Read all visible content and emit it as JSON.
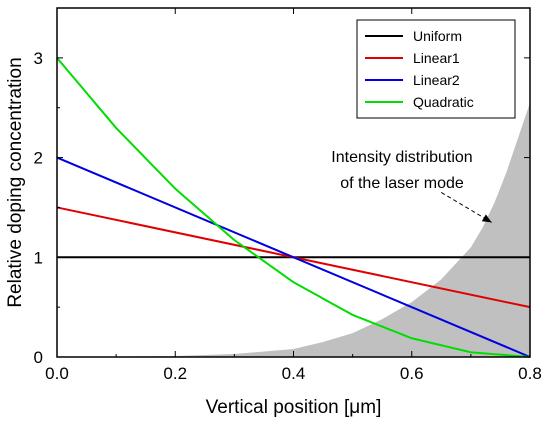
{
  "chart_data": {
    "type": "line",
    "xlabel": "Vertical position [μm]",
    "ylabel": "Relative doping concentration",
    "xlim": [
      0,
      0.8
    ],
    "ylim": [
      0,
      3.5
    ],
    "xticks": [
      "0.0",
      "0.2",
      "0.4",
      "0.6",
      "0.8"
    ],
    "yticks": [
      "0",
      "1",
      "2",
      "3"
    ],
    "legend_position": "top-right",
    "series": [
      {
        "name": "Uniform",
        "color": "#000000",
        "x": [
          0,
          0.8
        ],
        "y": [
          1,
          1
        ]
      },
      {
        "name": "Linear1",
        "color": "#e00000",
        "x": [
          0,
          0.8
        ],
        "y": [
          1.5,
          0.5
        ]
      },
      {
        "name": "Linear2",
        "color": "#0000e0",
        "x": [
          0,
          0.8
        ],
        "y": [
          2,
          0
        ]
      },
      {
        "name": "Quadratic",
        "color": "#00dd00",
        "x": [
          0,
          0.1,
          0.2,
          0.3,
          0.4,
          0.5,
          0.6,
          0.7,
          0.8
        ],
        "y": [
          3,
          2.297,
          1.688,
          1.172,
          0.75,
          0.422,
          0.188,
          0.047,
          0
        ]
      }
    ],
    "area": {
      "color": "#c0c0c0",
      "x": [
        0,
        0.2,
        0.3,
        0.4,
        0.45,
        0.5,
        0.55,
        0.6,
        0.65,
        0.7,
        0.72,
        0.74,
        0.76,
        0.78,
        0.8
      ],
      "y": [
        0,
        0.01,
        0.03,
        0.08,
        0.15,
        0.24,
        0.38,
        0.55,
        0.78,
        1.1,
        1.3,
        1.55,
        1.85,
        2.2,
        2.55
      ]
    },
    "annotation": {
      "lines": [
        "Intensity distribution",
        "of the laser mode"
      ],
      "arrow_from": [
        0.65,
        1.65
      ],
      "arrow_to": [
        0.735,
        1.35
      ]
    }
  }
}
